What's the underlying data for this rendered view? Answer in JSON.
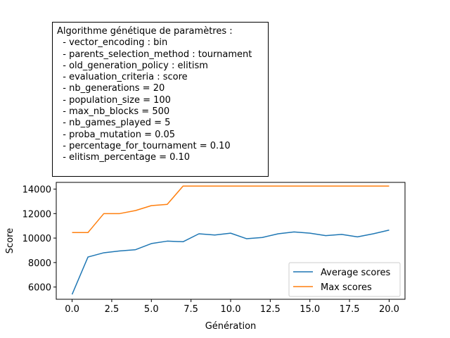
{
  "info_box": {
    "title": "Algorithme génétique de paramètres :",
    "lines": [
      "  - vector_encoding : bin",
      "  - parents_selection_method : tournament",
      "  - old_generation_policy : elitism",
      "  - evaluation_criteria : score",
      "  - nb_generations = 20",
      "  - population_size = 100",
      "  - max_nb_blocks = 500",
      "  - nb_games_played = 5",
      "  - proba_mutation = 0.05",
      "  - percentage_for_tournament = 0.10",
      "  - elitism_percentage = 0.10"
    ]
  },
  "chart_data": {
    "type": "line",
    "xlabel": "Génération",
    "ylabel": "Score",
    "xlim": [
      -1,
      21
    ],
    "ylim": [
      5000,
      14550
    ],
    "x_ticks": [
      0.0,
      2.5,
      5.0,
      7.5,
      10.0,
      12.5,
      15.0,
      17.5,
      20.0
    ],
    "x_tick_labels": [
      "0.0",
      "2.5",
      "5.0",
      "7.5",
      "10.0",
      "12.5",
      "15.0",
      "17.5",
      "20.0"
    ],
    "y_ticks": [
      6000,
      8000,
      10000,
      12000,
      14000
    ],
    "y_tick_labels": [
      "6000",
      "8000",
      "10000",
      "12000",
      "14000"
    ],
    "grid": false,
    "legend_position": "lower-right",
    "x": [
      0,
      1,
      2,
      3,
      4,
      5,
      6,
      7,
      8,
      9,
      10,
      11,
      12,
      13,
      14,
      15,
      16,
      17,
      18,
      19,
      20
    ],
    "series": [
      {
        "name": "Average scores",
        "color": "#1f77b4",
        "values": [
          5400,
          8450,
          8800,
          8950,
          9050,
          9550,
          9750,
          9700,
          10350,
          10250,
          10400,
          9950,
          10050,
          10350,
          10500,
          10400,
          10200,
          10300,
          10100,
          10350,
          10650
        ]
      },
      {
        "name": "Max scores",
        "color": "#ff7f0e",
        "values": [
          10450,
          10450,
          12000,
          12000,
          12250,
          12650,
          12750,
          14250,
          14250,
          14250,
          14250,
          14250,
          14250,
          14250,
          14250,
          14250,
          14250,
          14250,
          14250,
          14250,
          14250
        ]
      }
    ]
  }
}
